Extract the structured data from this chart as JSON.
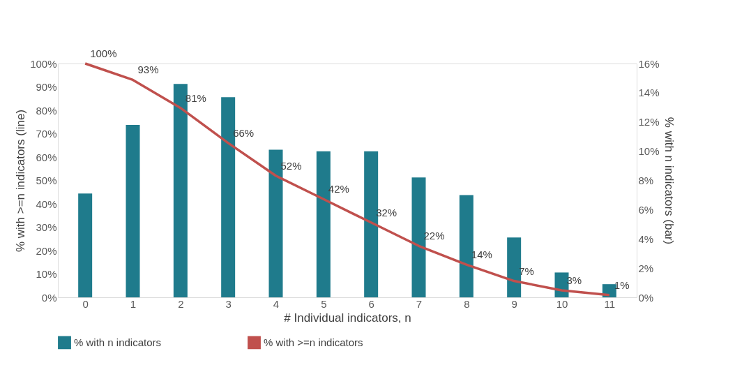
{
  "chart_data": {
    "type": "bar",
    "xlabel": "# Individual indicators, n",
    "ylabel": "% with >=n indicators (line)",
    "y2label": "% with n indicators (bar)",
    "categories": [
      "0",
      "1",
      "2",
      "3",
      "4",
      "5",
      "6",
      "7",
      "8",
      "9",
      "10",
      "11"
    ],
    "series": [
      {
        "name": "% with n indicators",
        "type": "bar",
        "axis": "y2",
        "color": "#1f7b8c",
        "values": [
          7.1,
          11.8,
          14.6,
          13.7,
          10.1,
          10.0,
          10.0,
          8.2,
          7.0,
          4.1,
          1.7,
          0.9
        ]
      },
      {
        "name": "% with >=n indicators",
        "type": "line",
        "color": "#c0504d",
        "values": [
          100,
          93,
          81,
          66,
          52,
          42,
          32,
          22,
          14,
          7,
          3,
          1
        ],
        "value_labels": [
          "100%",
          "93%",
          "81%",
          "66%",
          "52%",
          "42%",
          "32%",
          "22%",
          "14%",
          "7%",
          "3%",
          "1%"
        ]
      }
    ],
    "ylim": [
      0,
      100
    ],
    "yticks": [
      {
        "value": 0,
        "label": "0%"
      },
      {
        "value": 10,
        "label": "10%"
      },
      {
        "value": 20,
        "label": "20%"
      },
      {
        "value": 30,
        "label": "30%"
      },
      {
        "value": 40,
        "label": "40%"
      },
      {
        "value": 50,
        "label": "50%"
      },
      {
        "value": 60,
        "label": "60%"
      },
      {
        "value": 70,
        "label": "70%"
      },
      {
        "value": 80,
        "label": "80%"
      },
      {
        "value": 90,
        "label": "90%"
      },
      {
        "value": 100,
        "label": "100%"
      }
    ],
    "y2lim": [
      0,
      16
    ],
    "y2ticks": [
      {
        "value": 0,
        "label": "0%"
      },
      {
        "value": 2,
        "label": "2%"
      },
      {
        "value": 4,
        "label": "4%"
      },
      {
        "value": 6,
        "label": "6%"
      },
      {
        "value": 8,
        "label": "8%"
      },
      {
        "value": 10,
        "label": "10%"
      },
      {
        "value": 12,
        "label": "12%"
      },
      {
        "value": 14,
        "label": "14%"
      },
      {
        "value": 16,
        "label": "16%"
      }
    ],
    "legend": "bottom",
    "grid": false,
    "line_style": "solid",
    "marker": "none"
  }
}
